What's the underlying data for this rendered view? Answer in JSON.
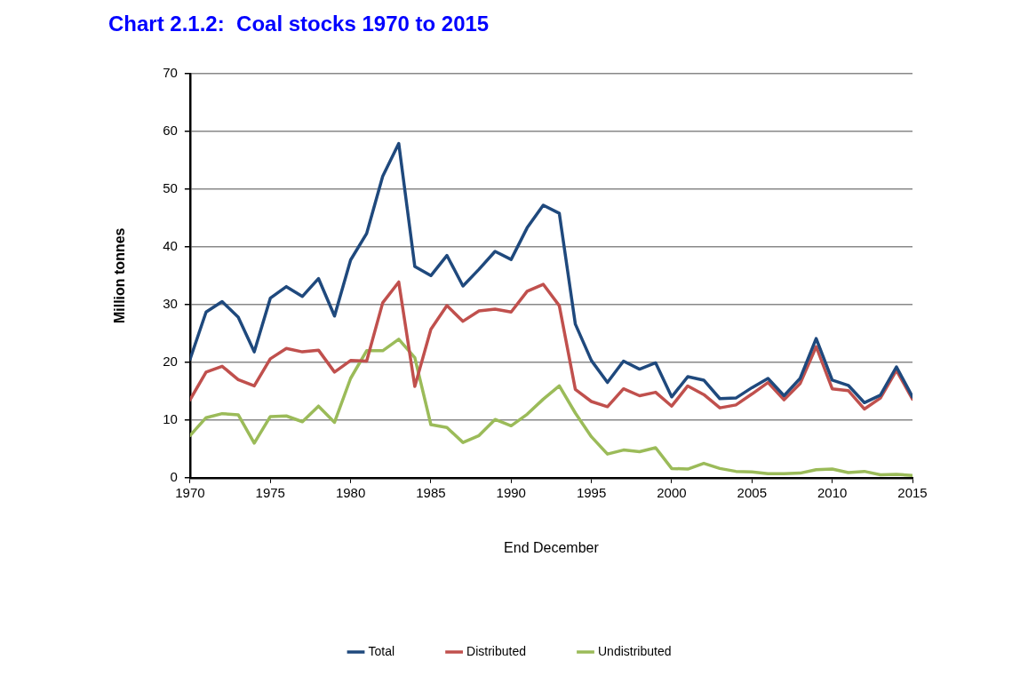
{
  "chart_data": {
    "type": "line",
    "title": "Chart 2.1.2:  Coal stocks 1970 to 2015",
    "xlabel": "End December",
    "ylabel": "Million tonnes",
    "x": [
      1970,
      1971,
      1972,
      1973,
      1974,
      1975,
      1976,
      1977,
      1978,
      1979,
      1980,
      1981,
      1982,
      1983,
      1984,
      1985,
      1986,
      1987,
      1988,
      1989,
      1990,
      1991,
      1992,
      1993,
      1994,
      1995,
      1996,
      1997,
      1998,
      1999,
      2000,
      2001,
      2002,
      2003,
      2004,
      2005,
      2006,
      2007,
      2008,
      2009,
      2010,
      2011,
      2012,
      2013,
      2014,
      2015
    ],
    "series": [
      {
        "name": "Total",
        "color": "#1f497d",
        "values": [
          20.5,
          28.7,
          30.5,
          27.8,
          21.8,
          31.1,
          33.1,
          31.4,
          34.5,
          28.0,
          37.7,
          42.3,
          52.2,
          57.9,
          36.6,
          35.0,
          38.5,
          33.2,
          36.1,
          39.2,
          37.8,
          43.3,
          47.2,
          45.8,
          26.6,
          20.3,
          16.5,
          20.2,
          18.8,
          19.9,
          14.0,
          17.5,
          16.9,
          13.7,
          13.8,
          15.6,
          17.2,
          14.2,
          17.2,
          24.1,
          16.9,
          16.0,
          13.0,
          14.3,
          19.2,
          14.0
        ]
      },
      {
        "name": "Distributed",
        "color": "#c0504d",
        "values": [
          13.5,
          18.3,
          19.3,
          17.0,
          15.9,
          20.6,
          22.4,
          21.8,
          22.1,
          18.3,
          20.3,
          20.2,
          30.3,
          33.9,
          15.8,
          25.7,
          29.8,
          27.1,
          28.9,
          29.2,
          28.7,
          32.3,
          33.5,
          29.8,
          15.3,
          13.2,
          12.3,
          15.4,
          14.2,
          14.8,
          12.4,
          15.9,
          14.4,
          12.1,
          12.6,
          14.5,
          16.5,
          13.5,
          16.3,
          22.7,
          15.4,
          15.1,
          11.9,
          13.8,
          18.6,
          13.6
        ]
      },
      {
        "name": "Undistributed",
        "color": "#9bbb59",
        "values": [
          7.3,
          10.4,
          11.1,
          10.9,
          6.0,
          10.6,
          10.7,
          9.7,
          12.4,
          9.6,
          17.2,
          22.0,
          22.0,
          24.0,
          20.8,
          9.2,
          8.7,
          6.1,
          7.3,
          10.1,
          9.0,
          11.0,
          13.6,
          15.9,
          11.2,
          7.1,
          4.1,
          4.8,
          4.5,
          5.2,
          1.6,
          1.5,
          2.5,
          1.6,
          1.1,
          1.0,
          0.7,
          0.7,
          0.8,
          1.4,
          1.5,
          0.9,
          1.1,
          0.5,
          0.6,
          0.4
        ]
      }
    ],
    "xlim": [
      1970,
      2015
    ],
    "xticks": [
      1970,
      1975,
      1980,
      1985,
      1990,
      1995,
      2000,
      2005,
      2010,
      2015
    ],
    "ylim": [
      0,
      70
    ],
    "yticks": [
      0,
      10,
      20,
      30,
      40,
      50,
      60,
      70
    ],
    "grid": "y",
    "legend": "bottom",
    "marker": "none",
    "line_style": "solid"
  }
}
